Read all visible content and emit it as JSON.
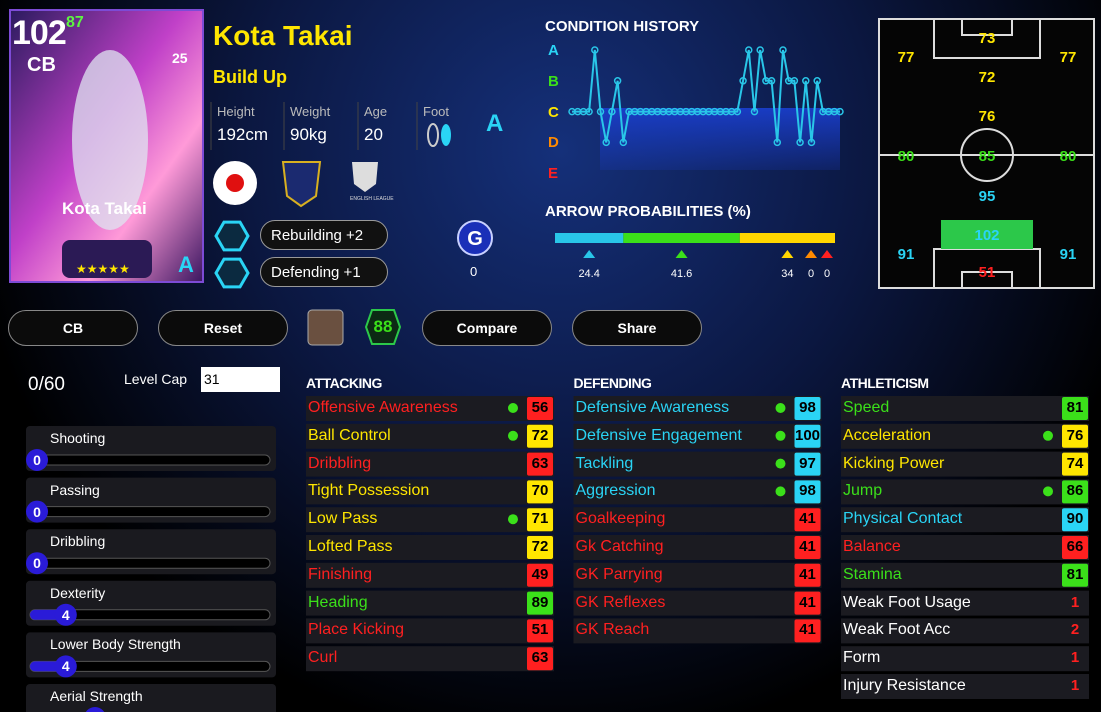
{
  "card": {
    "rating": 102,
    "level": 87,
    "position": "CB",
    "badge_number": 25,
    "name": "Kota Takai",
    "stars": "★★★★★",
    "grade": "A"
  },
  "profile": {
    "name": "Kota Takai",
    "style": "Build Up",
    "height": {
      "label": "Height",
      "value": "192cm"
    },
    "weight": {
      "label": "Weight",
      "value": "90kg"
    },
    "age": {
      "label": "Age",
      "value": 20
    },
    "foot": {
      "label": "Foot"
    },
    "condition": "A",
    "league": "ENGLISH LEAGUE"
  },
  "skills": [
    "Rebuilding +2",
    "Defending +1"
  ],
  "g_badge": {
    "label": "G",
    "count": 0
  },
  "condition_history": {
    "type": "line",
    "title": "CONDITION HISTORY",
    "grades": [
      "A",
      "B",
      "C",
      "D",
      "E"
    ],
    "grade_colors": [
      "#2ad4f5",
      "#3be01a",
      "#ffe600",
      "#ff8a00",
      "#ff2020"
    ],
    "color": "#29c6e8",
    "values": [
      "C",
      "C",
      "C",
      "C",
      "A",
      "C",
      "D",
      "C",
      "B",
      "D",
      "C",
      "C",
      "C",
      "C",
      "C",
      "C",
      "C",
      "C",
      "C",
      "C",
      "C",
      "C",
      "C",
      "C",
      "C",
      "C",
      "C",
      "C",
      "C",
      "C",
      "B",
      "A",
      "C",
      "A",
      "B",
      "B",
      "D",
      "A",
      "B",
      "B",
      "D",
      "B",
      "D",
      "B",
      "C",
      "C",
      "C",
      "C"
    ]
  },
  "arrow_probabilities": {
    "type": "bar",
    "title": "ARROW PROBABILITIES (%)",
    "series": [
      {
        "color": "#29c6e8",
        "value": 24.4
      },
      {
        "color": "#3be01a",
        "value": 41.6
      },
      {
        "color": "#ffd600",
        "value": 34
      },
      {
        "color": "#ff8a00",
        "value": 0
      },
      {
        "color": "#ff2020",
        "value": 0
      }
    ]
  },
  "pitch": [
    {
      "value": 73,
      "color": "#ffe600"
    },
    {
      "value": 77,
      "color": "#ffe600"
    },
    {
      "value": 77,
      "color": "#ffe600"
    },
    {
      "value": 72,
      "color": "#ffe600"
    },
    {
      "value": 76,
      "color": "#ffe600"
    },
    {
      "value": 80,
      "color": "#3be01a"
    },
    {
      "value": 85,
      "color": "#3be01a"
    },
    {
      "value": 80,
      "color": "#3be01a"
    },
    {
      "value": 95,
      "color": "#2ad4f5"
    },
    {
      "value": 102,
      "color": "#2ad4f5",
      "highlight": true
    },
    {
      "value": 91,
      "color": "#2ad4f5"
    },
    {
      "value": 91,
      "color": "#2ad4f5"
    },
    {
      "value": 51,
      "color": "#ff2020"
    }
  ],
  "controls": {
    "position": "CB",
    "reset": "Reset",
    "rating": 88,
    "compare": "Compare",
    "share": "Share"
  },
  "progression": {
    "points": "0/60",
    "level_cap_label": "Level Cap",
    "level_cap": 31,
    "sliders": [
      {
        "name": "Shooting",
        "value": 0
      },
      {
        "name": "Passing",
        "value": 0
      },
      {
        "name": "Dribbling",
        "value": 0
      },
      {
        "name": "Dexterity",
        "value": 4
      },
      {
        "name": "Lower Body Strength",
        "value": 4
      },
      {
        "name": "Aerial Strength"
      }
    ]
  },
  "stats": [
    {
      "title": "ATTACKING",
      "rows": [
        {
          "name": "Offensive Awareness",
          "value": 56,
          "color": "#ff2020",
          "boost": true
        },
        {
          "name": "Ball Control",
          "value": 72,
          "color": "#ffe600",
          "boost": true
        },
        {
          "name": "Dribbling",
          "value": 63,
          "color": "#ff2020"
        },
        {
          "name": "Tight Possession",
          "value": 70,
          "color": "#ffe600"
        },
        {
          "name": "Low Pass",
          "value": 71,
          "color": "#ffe600",
          "boost": true
        },
        {
          "name": "Lofted Pass",
          "value": 72,
          "color": "#ffe600"
        },
        {
          "name": "Finishing",
          "value": 49,
          "color": "#ff2020"
        },
        {
          "name": "Heading",
          "value": 89,
          "color": "#3be01a"
        },
        {
          "name": "Place Kicking",
          "value": 51,
          "color": "#ff2020"
        },
        {
          "name": "Curl",
          "value": 63,
          "color": "#ff2020"
        }
      ]
    },
    {
      "title": "DEFENDING",
      "rows": [
        {
          "name": "Defensive Awareness",
          "value": 98,
          "color": "#2ad4f5",
          "boost": true
        },
        {
          "name": "Defensive Engagement",
          "value": 100,
          "color": "#2ad4f5",
          "boost": true
        },
        {
          "name": "Tackling",
          "value": 97,
          "color": "#2ad4f5",
          "boost": true
        },
        {
          "name": "Aggression",
          "value": 98,
          "color": "#2ad4f5",
          "boost": true
        },
        {
          "name": "Goalkeeping",
          "value": 41,
          "color": "#ff2020"
        },
        {
          "name": "Gk Catching",
          "value": 41,
          "color": "#ff2020"
        },
        {
          "name": "GK Parrying",
          "value": 41,
          "color": "#ff2020"
        },
        {
          "name": "GK Reflexes",
          "value": 41,
          "color": "#ff2020"
        },
        {
          "name": "GK Reach",
          "value": 41,
          "color": "#ff2020"
        }
      ]
    },
    {
      "title": "ATHLETICISM",
      "rows": [
        {
          "name": "Speed",
          "value": 81,
          "color": "#3be01a"
        },
        {
          "name": "Acceleration",
          "value": 76,
          "color": "#ffe600",
          "boost": true
        },
        {
          "name": "Kicking Power",
          "value": 74,
          "color": "#ffe600"
        },
        {
          "name": "Jump",
          "value": 86,
          "color": "#3be01a",
          "boost": true
        },
        {
          "name": "Physical Contact",
          "value": 90,
          "color": "#2ad4f5"
        },
        {
          "name": "Balance",
          "value": 66,
          "color": "#ff2020"
        },
        {
          "name": "Stamina",
          "value": 81,
          "color": "#3be01a"
        },
        {
          "name": "Weak Foot Usage",
          "value": 1,
          "color": "#ff2020",
          "style": "level"
        },
        {
          "name": "Weak Foot Acc",
          "value": 2,
          "color": "#ff2020",
          "style": "level"
        },
        {
          "name": "Form",
          "value": 1,
          "color": "#ff2020",
          "style": "level"
        },
        {
          "name": "Injury Resistance",
          "value": 1,
          "color": "#ff2020",
          "style": "level"
        }
      ]
    }
  ]
}
